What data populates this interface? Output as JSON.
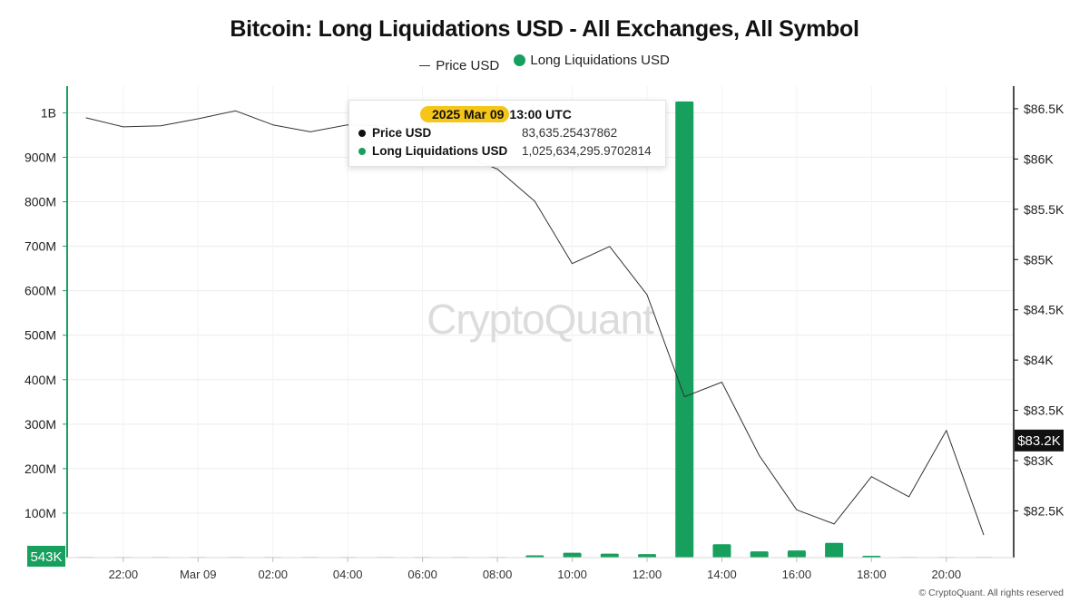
{
  "chart_data": {
    "type": "bar+line",
    "title": "Bitcoin: Long Liquidations USD - All Exchanges, All Symbol",
    "legend": [
      {
        "name": "Price USD",
        "marker": "line",
        "color": "#333333"
      },
      {
        "name": "Long Liquidations USD",
        "marker": "dot",
        "color": "#17a05d"
      }
    ],
    "legend_position": "top-center",
    "x_axis": {
      "tick_labels": [
        "22:00",
        "Mar 09",
        "02:00",
        "04:00",
        "06:00",
        "08:00",
        "10:00",
        "12:00",
        "14:00",
        "16:00",
        "18:00",
        "20:00"
      ],
      "tick_hours": [
        -2,
        0,
        2,
        4,
        6,
        8,
        10,
        12,
        14,
        16,
        18,
        20
      ],
      "range_hours": [
        -3.5,
        21.8
      ]
    },
    "y_left": {
      "tick_labels": [
        "100M",
        "200M",
        "300M",
        "400M",
        "500M",
        "600M",
        "700M",
        "800M",
        "900M",
        "1B"
      ],
      "tick_values": [
        100000000,
        200000000,
        300000000,
        400000000,
        500000000,
        600000000,
        700000000,
        800000000,
        900000000,
        1000000000
      ],
      "range": [
        0,
        1060000000
      ],
      "current_value_badge": "543K"
    },
    "y_right": {
      "tick_labels": [
        "$82.5K",
        "$83K",
        "$83.5K",
        "$84K",
        "$84.5K",
        "$85K",
        "$85.5K",
        "$86K",
        "$86.5K"
      ],
      "tick_values": [
        82500,
        83000,
        83500,
        84000,
        84500,
        85000,
        85500,
        86000,
        86500
      ],
      "range": [
        82035,
        86725
      ],
      "current_value_badge": "$83.2K"
    },
    "grid": true,
    "series": [
      {
        "name": "Price USD",
        "type": "line",
        "axis": "right",
        "color": "#333333",
        "x_hours": [
          -3,
          -2,
          -1,
          0,
          1,
          2,
          3,
          4,
          5,
          6,
          7,
          8,
          9,
          10,
          11,
          12,
          13,
          14,
          15,
          16,
          17,
          18,
          19,
          20,
          21
        ],
        "values": [
          86410,
          86320,
          86330,
          86400,
          86480,
          86340,
          86270,
          86340,
          86330,
          86100,
          86050,
          85900,
          85580,
          84960,
          85130,
          84650,
          83635,
          83780,
          83050,
          82510,
          82370,
          82840,
          82640,
          83300,
          82260
        ]
      },
      {
        "name": "Long Liquidations USD",
        "type": "bar",
        "axis": "left",
        "color": "#17a05d",
        "x_hours": [
          -3,
          -2,
          -1,
          0,
          1,
          2,
          3,
          4,
          5,
          6,
          7,
          8,
          9,
          10,
          11,
          12,
          13,
          14,
          15,
          16,
          17,
          18,
          19,
          20,
          21
        ],
        "values": [
          500000,
          400000,
          600000,
          500000,
          400000,
          400000,
          300000,
          500000,
          300000,
          400000,
          300000,
          600000,
          5000000,
          11000000,
          9000000,
          8000000,
          1025634295.9702814,
          30000000,
          14000000,
          16000000,
          33000000,
          4000000,
          600000,
          400000,
          543000
        ]
      }
    ],
    "tooltip": {
      "date": "2025 Mar 09",
      "time": "13:00 UTC",
      "rows": [
        {
          "name": "Price USD",
          "value": "83,635.25437862",
          "color": "#111111"
        },
        {
          "name": "Long Liquidations USD",
          "value": "1,025,634,295.9702814",
          "color": "#17a05d"
        }
      ]
    },
    "watermark": "CryptoQuant"
  },
  "footer": {
    "copyright": "© CryptoQuant. All rights reserved"
  }
}
